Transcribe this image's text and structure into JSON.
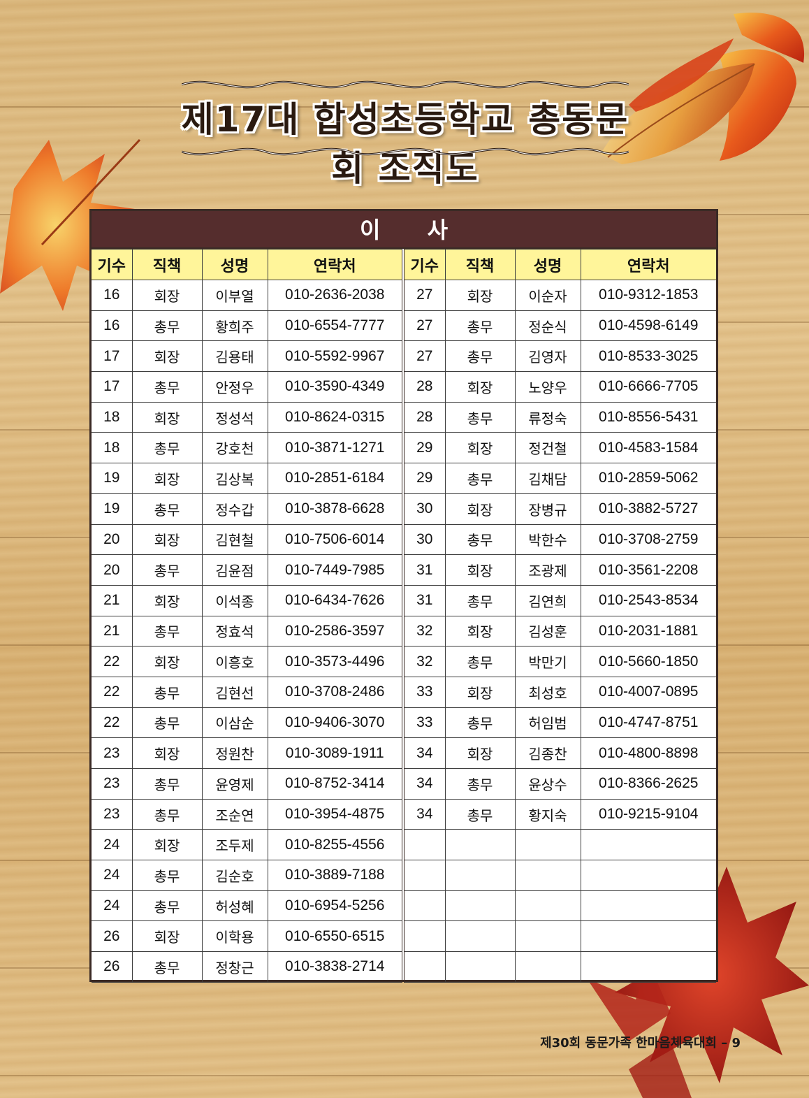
{
  "page": {
    "title": "제17대 합성초등학교 총동문회 조직도",
    "section_title": "이 사",
    "footer": "제30회 동문가족 한마음체육대회 – 9"
  },
  "table": {
    "headers": [
      "기수",
      "직책",
      "성명",
      "연락처"
    ],
    "left_rows": [
      [
        "16",
        "회장",
        "이부열",
        "010-2636-2038"
      ],
      [
        "16",
        "총무",
        "황희주",
        "010-6554-7777"
      ],
      [
        "17",
        "회장",
        "김용태",
        "010-5592-9967"
      ],
      [
        "17",
        "총무",
        "안정우",
        "010-3590-4349"
      ],
      [
        "18",
        "회장",
        "정성석",
        "010-8624-0315"
      ],
      [
        "18",
        "총무",
        "강호천",
        "010-3871-1271"
      ],
      [
        "19",
        "회장",
        "김상복",
        "010-2851-6184"
      ],
      [
        "19",
        "총무",
        "정수갑",
        "010-3878-6628"
      ],
      [
        "20",
        "회장",
        "김현철",
        "010-7506-6014"
      ],
      [
        "20",
        "총무",
        "김윤점",
        "010-7449-7985"
      ],
      [
        "21",
        "회장",
        "이석종",
        "010-6434-7626"
      ],
      [
        "21",
        "총무",
        "정효석",
        "010-2586-3597"
      ],
      [
        "22",
        "회장",
        "이흥호",
        "010-3573-4496"
      ],
      [
        "22",
        "총무",
        "김현선",
        "010-3708-2486"
      ],
      [
        "22",
        "총무",
        "이삼순",
        "010-9406-3070"
      ],
      [
        "23",
        "회장",
        "정원찬",
        "010-3089-1911"
      ],
      [
        "23",
        "총무",
        "윤영제",
        "010-8752-3414"
      ],
      [
        "23",
        "총무",
        "조순연",
        "010-3954-4875"
      ],
      [
        "24",
        "회장",
        "조두제",
        "010-8255-4556"
      ],
      [
        "24",
        "총무",
        "김순호",
        "010-3889-7188"
      ],
      [
        "24",
        "총무",
        "허성혜",
        "010-6954-5256"
      ],
      [
        "26",
        "회장",
        "이학용",
        "010-6550-6515"
      ],
      [
        "26",
        "총무",
        "정창근",
        "010-3838-2714"
      ]
    ],
    "right_rows": [
      [
        "27",
        "회장",
        "이순자",
        "010-9312-1853"
      ],
      [
        "27",
        "총무",
        "정순식",
        "010-4598-6149"
      ],
      [
        "27",
        "총무",
        "김영자",
        "010-8533-3025"
      ],
      [
        "28",
        "회장",
        "노양우",
        "010-6666-7705"
      ],
      [
        "28",
        "총무",
        "류정숙",
        "010-8556-5431"
      ],
      [
        "29",
        "회장",
        "정건철",
        "010-4583-1584"
      ],
      [
        "29",
        "총무",
        "김채담",
        "010-2859-5062"
      ],
      [
        "30",
        "회장",
        "장병규",
        "010-3882-5727"
      ],
      [
        "30",
        "총무",
        "박한수",
        "010-3708-2759"
      ],
      [
        "31",
        "회장",
        "조광제",
        "010-3561-2208"
      ],
      [
        "31",
        "총무",
        "김연희",
        "010-2543-8534"
      ],
      [
        "32",
        "회장",
        "김성훈",
        "010-2031-1881"
      ],
      [
        "32",
        "총무",
        "박만기",
        "010-5660-1850"
      ],
      [
        "33",
        "회장",
        "최성호",
        "010-4007-0895"
      ],
      [
        "33",
        "총무",
        "허임범",
        "010-4747-8751"
      ],
      [
        "34",
        "회장",
        "김종찬",
        "010-4800-8898"
      ],
      [
        "34",
        "총무",
        "윤상수",
        "010-8366-2625"
      ],
      [
        "34",
        "총무",
        "황지숙",
        "010-9215-9104"
      ],
      [
        "",
        "",
        "",
        ""
      ],
      [
        "",
        "",
        "",
        ""
      ],
      [
        "",
        "",
        "",
        ""
      ],
      [
        "",
        "",
        "",
        ""
      ],
      [
        "",
        "",
        "",
        ""
      ]
    ]
  }
}
